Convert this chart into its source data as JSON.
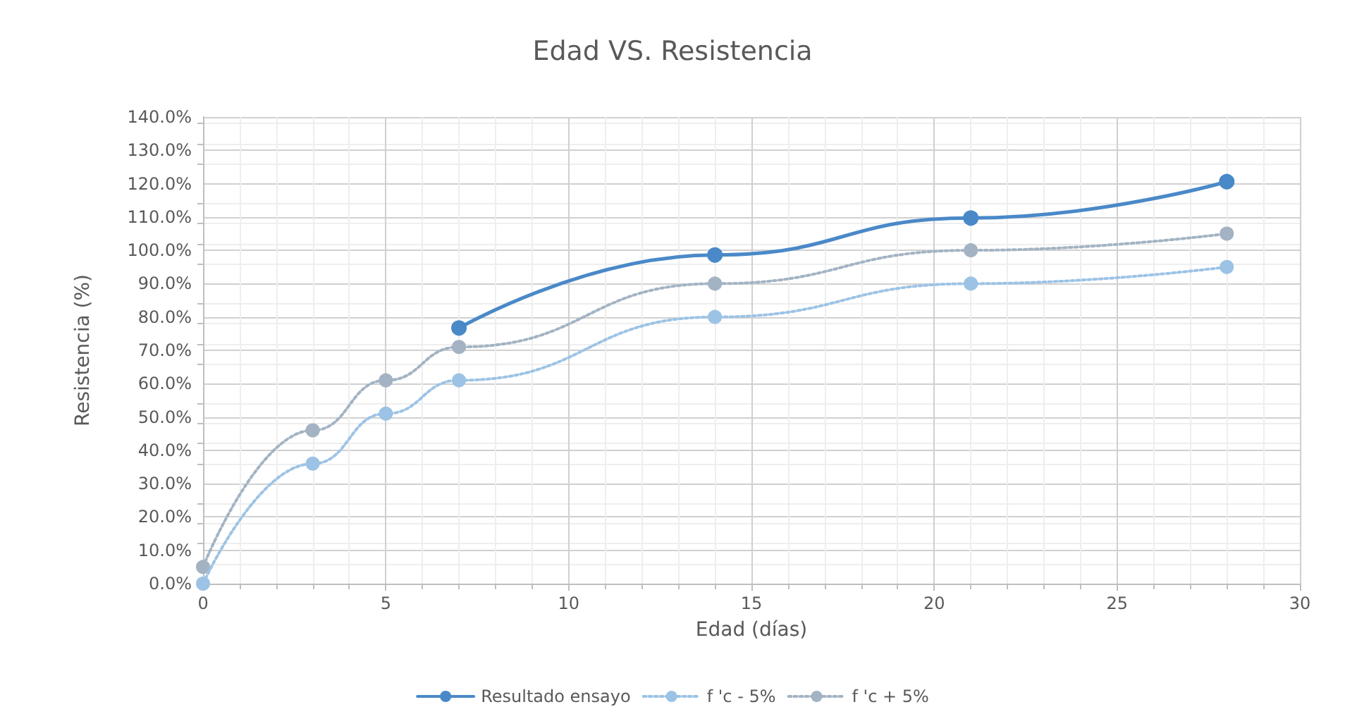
{
  "chart_data": {
    "type": "line",
    "title": "Edad VS. Resistencia",
    "xlabel": "Edad (días)",
    "ylabel": "Resistencia (%)",
    "xlim": [
      0,
      30
    ],
    "xticks": [
      0,
      5,
      10,
      15,
      20,
      25,
      30
    ],
    "ylim": [
      0,
      140
    ],
    "yticks": [
      {
        "value": 0,
        "label": "0.0%"
      },
      {
        "value": 10,
        "label": "10.0%"
      },
      {
        "value": 20,
        "label": "20.0%"
      },
      {
        "value": 30,
        "label": "30.0%"
      },
      {
        "value": 40,
        "label": "40.0%"
      },
      {
        "value": 50,
        "label": "50.0%"
      },
      {
        "value": 60,
        "label": "60.0%"
      },
      {
        "value": 70,
        "label": "70.0%"
      },
      {
        "value": 80,
        "label": "80.0%"
      },
      {
        "value": 90,
        "label": "90.0%"
      },
      {
        "value": 100,
        "label": "100.0%"
      },
      {
        "value": 110,
        "label": "110.0%"
      },
      {
        "value": 120,
        "label": "120.0%"
      },
      {
        "value": 130,
        "label": "130.0%"
      },
      {
        "value": 140,
        "label": "140.0%"
      }
    ],
    "grid": true,
    "legend": "bottom",
    "marker": "circle",
    "series": [
      {
        "name": "Resultado ensayo",
        "color": "#4a89c8",
        "x": [
          7,
          14,
          21,
          28
        ],
        "values": [
          76.7,
          98.6,
          109.7,
          120.6
        ],
        "line_style": "solid"
      },
      {
        "name": "f 'c - 5%",
        "color": "#9cc3e5",
        "x": [
          0,
          3,
          5,
          7,
          14,
          21,
          28
        ],
        "values": [
          0,
          36,
          51,
          61,
          80,
          90,
          95
        ],
        "line_style": "dotted"
      },
      {
        "name": "f 'c + 5%",
        "color": "#a3b3c3",
        "x": [
          0,
          3,
          5,
          7,
          14,
          21,
          28
        ],
        "values": [
          5,
          46,
          61,
          71,
          90,
          100,
          105
        ],
        "line_style": "dotted"
      }
    ]
  }
}
